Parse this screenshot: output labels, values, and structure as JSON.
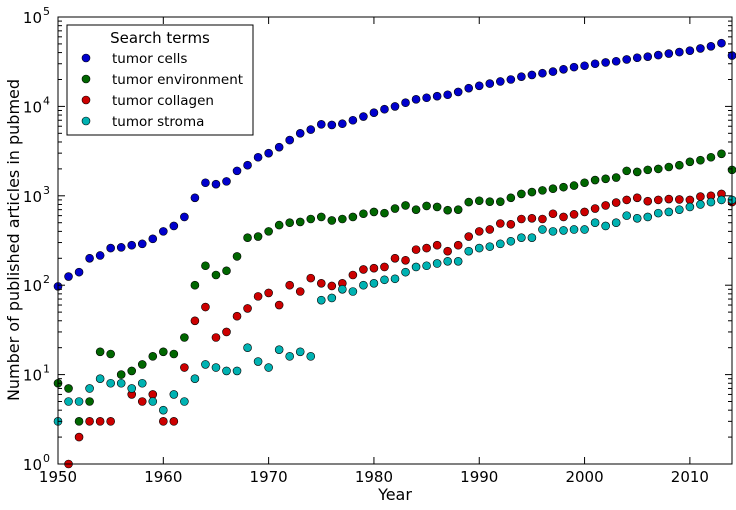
{
  "chart_data": {
    "type": "scatter",
    "xlabel": "Year",
    "ylabel": "Number of published articles in pubmed",
    "xlim": [
      1950,
      2014
    ],
    "ylim": [
      1,
      100000
    ],
    "yscale": "log",
    "x_ticks": [
      1950,
      1960,
      1970,
      1980,
      1990,
      2000,
      2010
    ],
    "x_tick_labels": [
      "1950",
      "1960",
      "1970",
      "1980",
      "1990",
      "2000",
      "2010"
    ],
    "y_ticks": [
      1,
      10,
      100,
      1000,
      10000,
      100000
    ],
    "y_tick_bases": [
      "10",
      "10",
      "10",
      "10",
      "10",
      "10"
    ],
    "y_tick_exponents": [
      "0",
      "1",
      "2",
      "3",
      "4",
      "5"
    ],
    "grid": false,
    "legend": {
      "title": "Search terms",
      "position": "top-left"
    },
    "series": [
      {
        "name": "tumor cells",
        "color": "#0000cc",
        "points": [
          [
            1950,
            97
          ],
          [
            1951,
            125
          ],
          [
            1952,
            140
          ],
          [
            1953,
            200
          ],
          [
            1954,
            215
          ],
          [
            1955,
            260
          ],
          [
            1956,
            265
          ],
          [
            1957,
            280
          ],
          [
            1958,
            290
          ],
          [
            1959,
            330
          ],
          [
            1960,
            400
          ],
          [
            1961,
            460
          ],
          [
            1962,
            580
          ],
          [
            1963,
            950
          ],
          [
            1964,
            1400
          ],
          [
            1965,
            1350
          ],
          [
            1966,
            1450
          ],
          [
            1967,
            1900
          ],
          [
            1968,
            2200
          ],
          [
            1969,
            2700
          ],
          [
            1970,
            3000
          ],
          [
            1971,
            3500
          ],
          [
            1972,
            4200
          ],
          [
            1973,
            5000
          ],
          [
            1974,
            5500
          ],
          [
            1975,
            6300
          ],
          [
            1976,
            6200
          ],
          [
            1977,
            6400
          ],
          [
            1978,
            7000
          ],
          [
            1979,
            7700
          ],
          [
            1980,
            8500
          ],
          [
            1981,
            9300
          ],
          [
            1982,
            10000
          ],
          [
            1983,
            11000
          ],
          [
            1984,
            12000
          ],
          [
            1985,
            12500
          ],
          [
            1986,
            13000
          ],
          [
            1987,
            13500
          ],
          [
            1988,
            14500
          ],
          [
            1989,
            16000
          ],
          [
            1990,
            17000
          ],
          [
            1991,
            18000
          ],
          [
            1992,
            19000
          ],
          [
            1993,
            20000
          ],
          [
            1994,
            21500
          ],
          [
            1995,
            22500
          ],
          [
            1996,
            23500
          ],
          [
            1997,
            24500
          ],
          [
            1998,
            26000
          ],
          [
            1999,
            27500
          ],
          [
            2000,
            28500
          ],
          [
            2001,
            30000
          ],
          [
            2002,
            31000
          ],
          [
            2003,
            32000
          ],
          [
            2004,
            33500
          ],
          [
            2005,
            35000
          ],
          [
            2006,
            36000
          ],
          [
            2007,
            37500
          ],
          [
            2008,
            39000
          ],
          [
            2009,
            40500
          ],
          [
            2010,
            42000
          ],
          [
            2011,
            44500
          ],
          [
            2012,
            47000
          ],
          [
            2013,
            51000
          ],
          [
            2014,
            37000
          ]
        ]
      },
      {
        "name": "tumor environment",
        "color": "#006600",
        "points": [
          [
            1950,
            8
          ],
          [
            1951,
            7
          ],
          [
            1952,
            3
          ],
          [
            1953,
            5
          ],
          [
            1954,
            18
          ],
          [
            1955,
            17
          ],
          [
            1956,
            10
          ],
          [
            1957,
            11
          ],
          [
            1958,
            13
          ],
          [
            1959,
            16
          ],
          [
            1960,
            18
          ],
          [
            1961,
            17
          ],
          [
            1962,
            26
          ],
          [
            1963,
            100
          ],
          [
            1964,
            165
          ],
          [
            1965,
            130
          ],
          [
            1966,
            145
          ],
          [
            1967,
            210
          ],
          [
            1968,
            340
          ],
          [
            1969,
            350
          ],
          [
            1970,
            400
          ],
          [
            1971,
            470
          ],
          [
            1972,
            500
          ],
          [
            1973,
            510
          ],
          [
            1974,
            550
          ],
          [
            1975,
            580
          ],
          [
            1976,
            530
          ],
          [
            1977,
            550
          ],
          [
            1978,
            580
          ],
          [
            1979,
            630
          ],
          [
            1980,
            660
          ],
          [
            1981,
            640
          ],
          [
            1982,
            720
          ],
          [
            1983,
            780
          ],
          [
            1984,
            700
          ],
          [
            1985,
            770
          ],
          [
            1986,
            750
          ],
          [
            1987,
            690
          ],
          [
            1988,
            700
          ],
          [
            1989,
            850
          ],
          [
            1990,
            880
          ],
          [
            1991,
            860
          ],
          [
            1992,
            860
          ],
          [
            1993,
            950
          ],
          [
            1994,
            1050
          ],
          [
            1995,
            1100
          ],
          [
            1996,
            1150
          ],
          [
            1997,
            1200
          ],
          [
            1998,
            1250
          ],
          [
            1999,
            1300
          ],
          [
            2000,
            1400
          ],
          [
            2001,
            1500
          ],
          [
            2002,
            1550
          ],
          [
            2003,
            1600
          ],
          [
            2004,
            1900
          ],
          [
            2005,
            1850
          ],
          [
            2006,
            1950
          ],
          [
            2007,
            2000
          ],
          [
            2008,
            2100
          ],
          [
            2009,
            2200
          ],
          [
            2010,
            2400
          ],
          [
            2011,
            2500
          ],
          [
            2012,
            2700
          ],
          [
            2013,
            2950
          ],
          [
            2014,
            1950
          ]
        ]
      },
      {
        "name": "tumor collagen",
        "color": "#cc0000",
        "points": [
          [
            1951,
            1
          ],
          [
            1952,
            2
          ],
          [
            1953,
            3
          ],
          [
            1954,
            3
          ],
          [
            1955,
            3
          ],
          [
            1957,
            6
          ],
          [
            1958,
            5
          ],
          [
            1959,
            6
          ],
          [
            1960,
            3
          ],
          [
            1961,
            3
          ],
          [
            1962,
            12
          ],
          [
            1963,
            40
          ],
          [
            1964,
            57
          ],
          [
            1965,
            26
          ],
          [
            1966,
            30
          ],
          [
            1967,
            45
          ],
          [
            1968,
            55
          ],
          [
            1969,
            75
          ],
          [
            1970,
            82
          ],
          [
            1971,
            60
          ],
          [
            1972,
            100
          ],
          [
            1973,
            85
          ],
          [
            1974,
            120
          ],
          [
            1975,
            105
          ],
          [
            1976,
            98
          ],
          [
            1977,
            105
          ],
          [
            1978,
            130
          ],
          [
            1979,
            150
          ],
          [
            1980,
            155
          ],
          [
            1981,
            160
          ],
          [
            1982,
            200
          ],
          [
            1983,
            190
          ],
          [
            1984,
            250
          ],
          [
            1985,
            260
          ],
          [
            1986,
            280
          ],
          [
            1987,
            240
          ],
          [
            1988,
            280
          ],
          [
            1989,
            350
          ],
          [
            1990,
            400
          ],
          [
            1991,
            420
          ],
          [
            1992,
            490
          ],
          [
            1993,
            480
          ],
          [
            1994,
            550
          ],
          [
            1995,
            560
          ],
          [
            1996,
            550
          ],
          [
            1997,
            630
          ],
          [
            1998,
            580
          ],
          [
            1999,
            620
          ],
          [
            2000,
            660
          ],
          [
            2001,
            720
          ],
          [
            2002,
            780
          ],
          [
            2003,
            840
          ],
          [
            2004,
            900
          ],
          [
            2005,
            950
          ],
          [
            2006,
            870
          ],
          [
            2007,
            900
          ],
          [
            2008,
            920
          ],
          [
            2009,
            910
          ],
          [
            2010,
            900
          ],
          [
            2011,
            980
          ],
          [
            2012,
            1000
          ],
          [
            2013,
            1050
          ],
          [
            2014,
            850
          ]
        ]
      },
      {
        "name": "tumor stroma",
        "color": "#00b2b2",
        "points": [
          [
            1950,
            3
          ],
          [
            1951,
            5
          ],
          [
            1952,
            5
          ],
          [
            1953,
            7
          ],
          [
            1954,
            9
          ],
          [
            1955,
            8
          ],
          [
            1956,
            8
          ],
          [
            1957,
            7
          ],
          [
            1958,
            8
          ],
          [
            1959,
            5
          ],
          [
            1960,
            4
          ],
          [
            1961,
            6
          ],
          [
            1962,
            5
          ],
          [
            1963,
            9
          ],
          [
            1964,
            13
          ],
          [
            1965,
            12
          ],
          [
            1966,
            11
          ],
          [
            1967,
            11
          ],
          [
            1968,
            20
          ],
          [
            1969,
            14
          ],
          [
            1970,
            12
          ],
          [
            1971,
            19
          ],
          [
            1972,
            16
          ],
          [
            1973,
            18
          ],
          [
            1974,
            16
          ],
          [
            1975,
            68
          ],
          [
            1976,
            72
          ],
          [
            1977,
            90
          ],
          [
            1978,
            85
          ],
          [
            1979,
            100
          ],
          [
            1980,
            105
          ],
          [
            1981,
            115
          ],
          [
            1982,
            118
          ],
          [
            1983,
            140
          ],
          [
            1984,
            160
          ],
          [
            1985,
            165
          ],
          [
            1986,
            175
          ],
          [
            1987,
            185
          ],
          [
            1988,
            185
          ],
          [
            1989,
            240
          ],
          [
            1990,
            260
          ],
          [
            1991,
            270
          ],
          [
            1992,
            290
          ],
          [
            1993,
            310
          ],
          [
            1994,
            340
          ],
          [
            1995,
            340
          ],
          [
            1996,
            420
          ],
          [
            1997,
            400
          ],
          [
            1998,
            410
          ],
          [
            1999,
            420
          ],
          [
            2000,
            420
          ],
          [
            2001,
            500
          ],
          [
            2002,
            460
          ],
          [
            2003,
            500
          ],
          [
            2004,
            600
          ],
          [
            2005,
            560
          ],
          [
            2006,
            580
          ],
          [
            2007,
            640
          ],
          [
            2008,
            660
          ],
          [
            2009,
            700
          ],
          [
            2010,
            750
          ],
          [
            2011,
            800
          ],
          [
            2012,
            850
          ],
          [
            2013,
            900
          ],
          [
            2014,
            900
          ]
        ]
      }
    ]
  }
}
